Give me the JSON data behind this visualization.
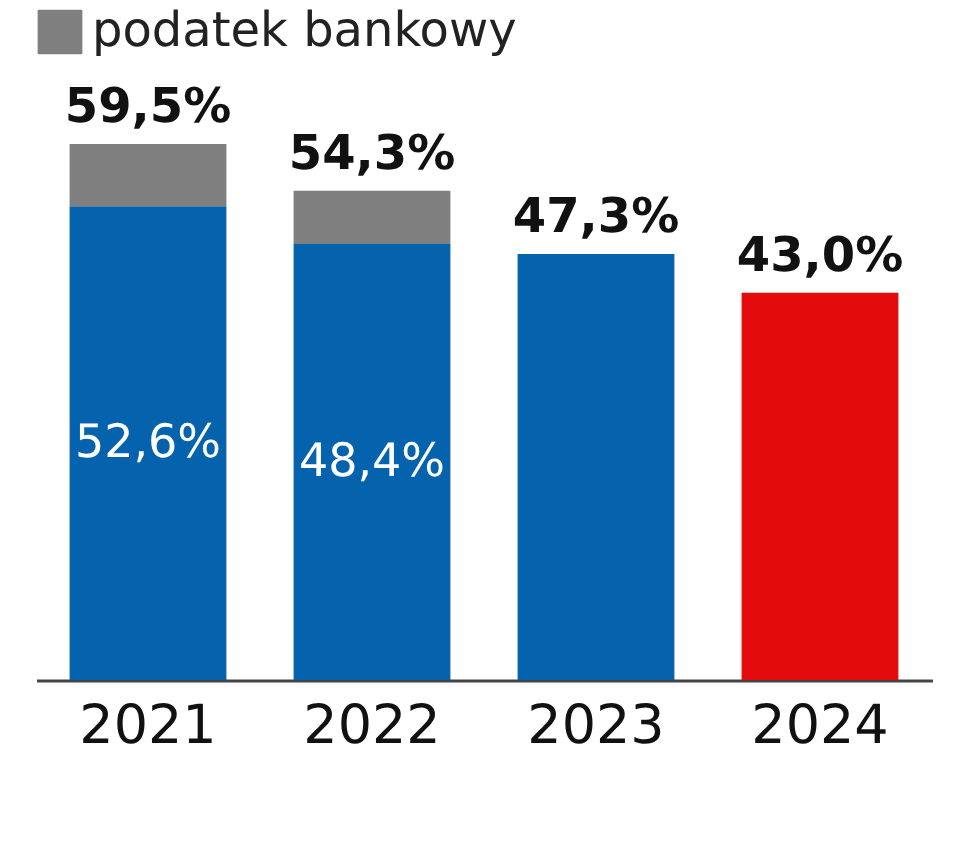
{
  "chart_data": {
    "type": "bar",
    "stacked": true,
    "categories": [
      "2021",
      "2022",
      "2023",
      "2024"
    ],
    "series": [
      {
        "colors": [
          "#0563ad",
          "#0563ad",
          "#0563ad",
          "#e30b0b"
        ],
        "values": [
          52.6,
          48.4,
          47.3,
          43.0
        ],
        "value_labels": [
          "52,6%",
          "48,4%",
          null,
          null
        ]
      },
      {
        "name": "podatek bankowy",
        "color": "#7f7f7f",
        "values": [
          6.9,
          5.9,
          null,
          null
        ]
      }
    ],
    "totals": [
      "59,5%",
      "54,3%",
      "47,3%",
      "43,0%"
    ],
    "legend": "top",
    "grid": false,
    "tick_labels": "x"
  }
}
